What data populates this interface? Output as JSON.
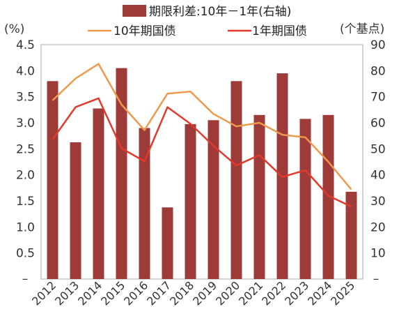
{
  "chart_data": {
    "type": "bar",
    "categories": [
      "2012",
      "2013",
      "2014",
      "2015",
      "2016",
      "2017",
      "2018",
      "2019",
      "2020",
      "2021",
      "2022",
      "2023",
      "2024",
      "2025"
    ],
    "left_axis": {
      "unit_label": "(%)",
      "ylim": [
        0,
        4.5
      ],
      "tick_values": [
        0.5,
        1.0,
        1.5,
        2.0,
        2.5,
        3.0,
        3.5,
        4.0,
        4.5
      ],
      "tick_labels": [
        "0.5",
        "1.0",
        "1.5",
        "2.0",
        "2.5",
        "3.0",
        "3.5",
        "4.0",
        "4.5"
      ],
      "zero_label": "–"
    },
    "right_axis": {
      "unit_label": "(个基点)",
      "ylim": [
        0,
        90
      ],
      "tick_values": [
        10,
        20,
        30,
        40,
        50,
        60,
        70,
        80,
        90
      ],
      "tick_labels": [
        "10",
        "20",
        "30",
        "40",
        "50",
        "60",
        "70",
        "80",
        "90"
      ],
      "zero_label": "–"
    },
    "series": [
      {
        "name": "期限利差:10年－1年(右轴)",
        "type": "bar",
        "axis": "right",
        "color": "#9e3b39",
        "values": [
          76,
          52.5,
          65.5,
          81,
          58,
          27.5,
          59.5,
          61,
          76,
          63,
          79,
          61.5,
          63,
          33.5
        ]
      },
      {
        "name": "10年期国债",
        "type": "line",
        "axis": "left",
        "color": "#ee9a4d",
        "values": [
          3.43,
          3.85,
          4.13,
          3.35,
          2.86,
          3.56,
          3.6,
          3.17,
          2.93,
          3.0,
          2.77,
          2.72,
          2.25,
          1.72
        ]
      },
      {
        "name": "1年期国债",
        "type": "line",
        "axis": "left",
        "color": "#e13a2d",
        "values": [
          2.68,
          3.3,
          3.47,
          2.51,
          2.26,
          3.3,
          2.98,
          2.56,
          2.18,
          2.38,
          1.96,
          2.09,
          1.6,
          1.39
        ]
      }
    ],
    "legend_position": "top",
    "grid": false
  }
}
